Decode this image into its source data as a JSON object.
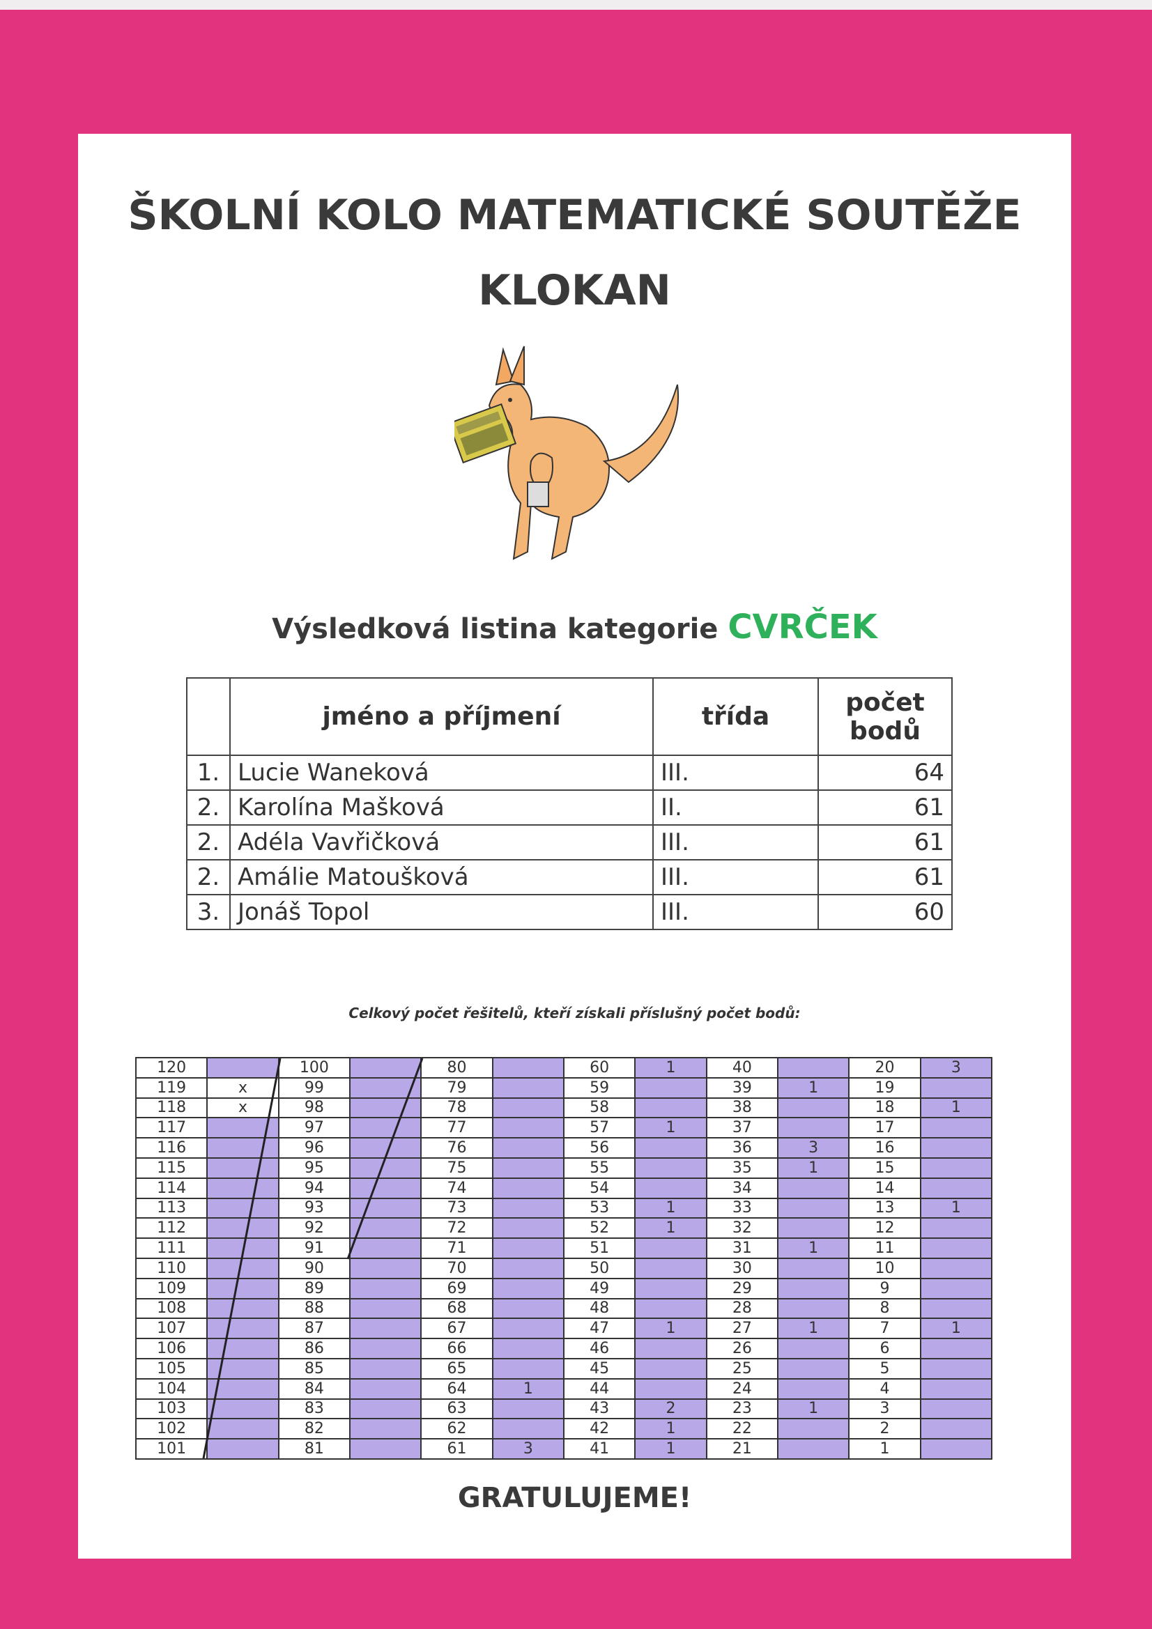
{
  "colors": {
    "border": "#e2337f",
    "category": "#2fb05a",
    "count_cell": "#b9a8e8"
  },
  "header": {
    "title_line1": "ŠKOLNÍ KOLO MATEMATICKÉ SOUTĚŽE",
    "title_line2": "KLOKAN"
  },
  "illustration": "kangaroo-with-calculator",
  "subtitle": {
    "text": "Výsledková listina kategorie ",
    "category": "CVRČEK"
  },
  "results": {
    "headers": {
      "rank": "",
      "name": "jméno a příjmení",
      "class": "třída",
      "points": "počet bodů"
    },
    "rows": [
      {
        "rank": "1.",
        "name": "Lucie Waneková",
        "class": "III.",
        "points": "64"
      },
      {
        "rank": "2.",
        "name": "Karolína Mašková",
        "class": "II.",
        "points": "61"
      },
      {
        "rank": "2.",
        "name": "Adéla Vavřičková",
        "class": "III.",
        "points": "61"
      },
      {
        "rank": "2.",
        "name": "Amálie Matoušková",
        "class": "III.",
        "points": "61"
      },
      {
        "rank": "3.",
        "name": "Jonáš Topol",
        "class": "III.",
        "points": "60"
      }
    ]
  },
  "score_table": {
    "caption": "Celkový počet řešitelů, kteří získali příslušný počet bodů:",
    "max_score": 120,
    "counts": {
      "119": "x",
      "118": "x",
      "64": "1",
      "61": "3",
      "60": "1",
      "57": "1",
      "53": "1",
      "52": "1",
      "47": "1",
      "43": "2",
      "42": "1",
      "41": "1",
      "39": "1",
      "36": "3",
      "35": "1",
      "31": "1",
      "27": "1",
      "23": "1",
      "20": "3",
      "18": "1",
      "13": "1",
      "7": "1"
    }
  },
  "footer": {
    "congrats": "GRATULUJEME!"
  }
}
